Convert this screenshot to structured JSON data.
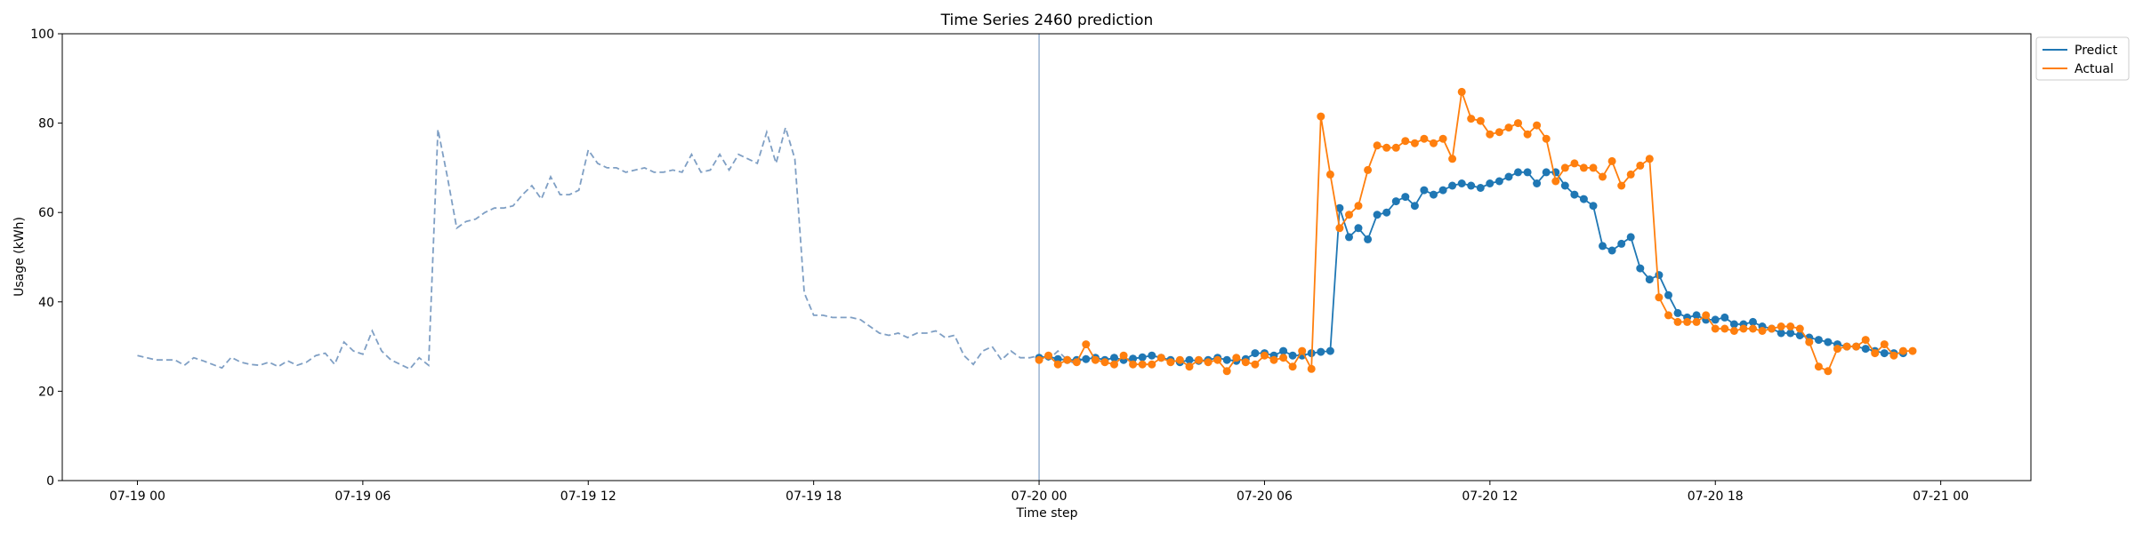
{
  "chart_data": {
    "type": "line",
    "title": "Time Series 2460 prediction",
    "xlabel": "Time step",
    "ylabel": "Usage (kWh)",
    "ylim": [
      0,
      100
    ],
    "yticks": [
      0,
      20,
      40,
      60,
      80,
      100
    ],
    "x_range_hours": [
      -2.0,
      50.4
    ],
    "xticks": [
      {
        "hour": 0,
        "label": "07-19 00"
      },
      {
        "hour": 6,
        "label": "07-19 06"
      },
      {
        "hour": 12,
        "label": "07-19 12"
      },
      {
        "hour": 18,
        "label": "07-19 18"
      },
      {
        "hour": 24,
        "label": "07-20 00"
      },
      {
        "hour": 30,
        "label": "07-20 06"
      },
      {
        "hour": 36,
        "label": "07-20 12"
      },
      {
        "hour": 42,
        "label": "07-20 18"
      },
      {
        "hour": 48,
        "label": "07-21 00"
      }
    ],
    "grid": false,
    "legend_position": "top-right-outside",
    "forecast_start_hour": 24,
    "colors": {
      "history": "#7f9fc4",
      "predict": "#1f77b4",
      "actual": "#ff7f0e",
      "vline": "#7f9fc4"
    },
    "history": {
      "start_hour": 0,
      "step_hours": 0.25,
      "values": [
        28,
        27.5,
        27,
        27,
        27,
        25.8,
        27.5,
        26.8,
        26,
        25.2,
        27.6,
        26.5,
        26,
        25.8,
        26.5,
        25.5,
        26.8,
        25.8,
        26.5,
        28,
        28.5,
        26,
        31,
        29,
        28.3,
        33.5,
        29,
        27,
        26,
        25,
        27.5,
        25.8,
        78.6,
        68,
        56.5,
        58,
        58.5,
        60,
        61,
        61,
        61.5,
        64,
        66,
        63,
        68,
        64,
        64,
        65,
        74,
        71,
        70,
        70,
        69,
        69.5,
        70,
        69,
        69,
        69.5,
        69,
        73,
        69,
        69.5,
        73,
        69.5,
        73,
        72,
        71,
        78,
        71,
        79,
        72,
        42,
        37,
        37,
        36.5,
        36.5,
        36.5,
        36,
        34.5,
        33,
        32.5,
        33,
        32,
        33,
        33,
        33.5,
        32,
        32.5,
        28,
        26,
        29,
        30,
        27,
        29,
        27.5,
        27.5,
        28,
        27,
        29,
        27,
        26,
        28
      ]
    },
    "forecast": {
      "start_hour": 24,
      "step_hours": 0.25,
      "series": [
        {
          "name": "Predict",
          "values": [
            27.5,
            27.8,
            27.2,
            27,
            27,
            27.2,
            27.5,
            27,
            27.5,
            27,
            27.3,
            27.6,
            28,
            27.5,
            27,
            26.5,
            27,
            26.8,
            27,
            27.5,
            27,
            26.8,
            27.2,
            28.5,
            28.5,
            28,
            29,
            28,
            28,
            28.5,
            28.8,
            29,
            61,
            54.5,
            56.5,
            54,
            59.5,
            60,
            62.5,
            63.5,
            61.5,
            65,
            64,
            65,
            66,
            66.5,
            66,
            65.5,
            66.5,
            67,
            68,
            69,
            69,
            66.5,
            69,
            69,
            66,
            64,
            63,
            61.5,
            52.5,
            51.5,
            53,
            54.5,
            47.5,
            45,
            46,
            41.5,
            37.5,
            36.5,
            37,
            36,
            36,
            36.5,
            35,
            35,
            35.5,
            34.5,
            34,
            33,
            33,
            32.5,
            32,
            31.5,
            31,
            30.5,
            30,
            30,
            29.5,
            29,
            28.5,
            28.5,
            28.5
          ]
        },
        {
          "name": "Actual",
          "values": [
            27,
            28,
            26,
            27,
            26.5,
            30.5,
            27,
            26.5,
            26,
            28,
            26,
            26,
            26,
            27.5,
            26.5,
            27,
            25.5,
            27,
            26.5,
            27,
            24.5,
            27.5,
            26.5,
            26,
            28,
            27,
            27.5,
            25.5,
            29,
            25,
            81.5,
            68.5,
            56.5,
            59.5,
            61.5,
            69.5,
            75,
            74.5,
            74.5,
            76,
            75.5,
            76.5,
            75.5,
            76.5,
            72,
            87,
            81,
            80.5,
            77.5,
            78,
            79,
            80,
            77.5,
            79.5,
            76.5,
            67,
            70,
            71,
            70,
            70,
            68,
            71.5,
            66,
            68.5,
            70.5,
            72,
            41,
            37,
            35.5,
            35.5,
            35.5,
            37,
            34,
            34,
            33.5,
            34,
            34,
            33.5,
            34,
            34.5,
            34.5,
            34,
            31,
            25.5,
            24.5,
            29.5,
            30,
            30,
            31.5,
            28.5,
            30.5,
            28,
            29,
            29
          ]
        }
      ]
    }
  }
}
